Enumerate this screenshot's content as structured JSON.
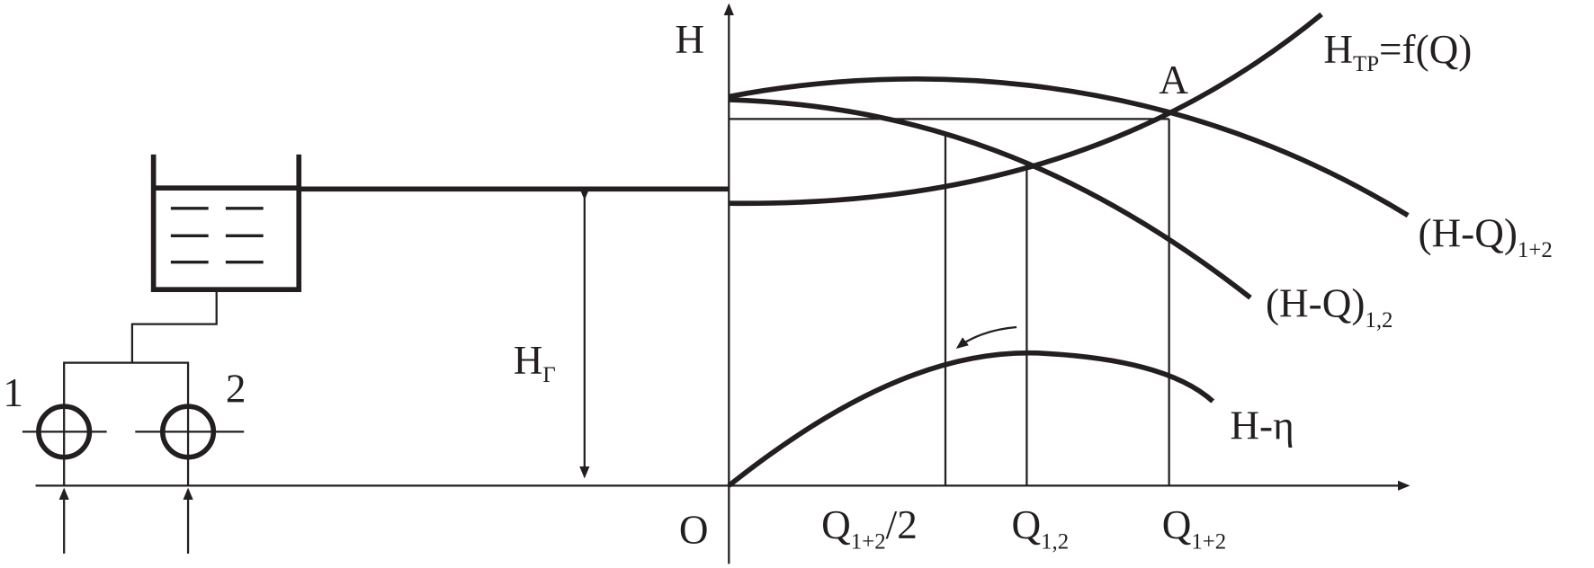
{
  "axis": {
    "y_label": "H",
    "origin": "O"
  },
  "point_a": "A",
  "curves": {
    "h_tr": {
      "main": "H",
      "sub": "ТР",
      "tail": "=f(Q)"
    },
    "hq_sum": {
      "main": "(H-Q)",
      "sub": "1+2"
    },
    "hq_single": {
      "main": "(H-Q)",
      "sub": "1,2"
    },
    "h_eta": "H-η"
  },
  "static_head": {
    "main": "H",
    "sub": "Г"
  },
  "pumps": [
    "1",
    "2"
  ],
  "x_labels": [
    {
      "main": "Q",
      "sub": "1+2",
      "tail": "/2"
    },
    {
      "main": "Q",
      "sub": "1,2"
    },
    {
      "main": "Q",
      "sub": "1+2"
    }
  ]
}
